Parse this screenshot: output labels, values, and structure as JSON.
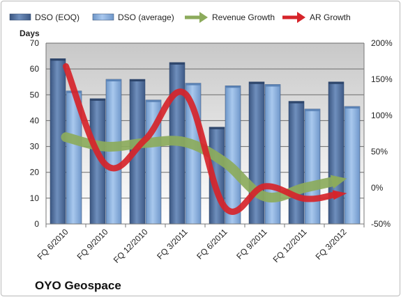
{
  "chart_data": {
    "type": "bar",
    "title": "OYO Geospace",
    "categories": [
      "FQ 6/2010",
      "FQ 9/2010",
      "FQ 12/2010",
      "FQ 3/2011",
      "FQ 6/2011",
      "FQ 9/2011",
      "FQ 12/2011",
      "FQ 3/2012"
    ],
    "ylabel": "Days",
    "ylim": [
      0,
      70
    ],
    "yticks": [
      0,
      10,
      20,
      30,
      40,
      50,
      60,
      70
    ],
    "y2lim": [
      -50,
      200
    ],
    "y2ticks": [
      "-50%",
      "0%",
      "50%",
      "100%",
      "150%",
      "200%"
    ],
    "y2tick_values": [
      -50,
      0,
      50,
      100,
      150,
      200
    ],
    "grid": true,
    "legend_position": "top",
    "series": [
      {
        "name": "DSO (EOQ)",
        "kind": "bar",
        "axis": "left",
        "color": "#4a6a9a",
        "values": [
          64,
          48.5,
          56,
          62.5,
          37.5,
          55,
          47.5,
          55
        ]
      },
      {
        "name": "DSO (average)",
        "kind": "bar",
        "axis": "left",
        "color": "#7ea6d8",
        "values": [
          51.5,
          56,
          48,
          54.5,
          53.5,
          54,
          44.5,
          45.5
        ]
      },
      {
        "name": "Revenue Growth",
        "kind": "arrow-line",
        "axis": "right",
        "color": "#8cab5c",
        "values": [
          70,
          57,
          62,
          63,
          35,
          -12,
          0,
          12
        ]
      },
      {
        "name": "AR Growth",
        "kind": "arrow-line",
        "axis": "right",
        "color": "#d6242a",
        "values": [
          168,
          32,
          67,
          130,
          -27,
          2,
          -15,
          -8
        ]
      }
    ]
  }
}
